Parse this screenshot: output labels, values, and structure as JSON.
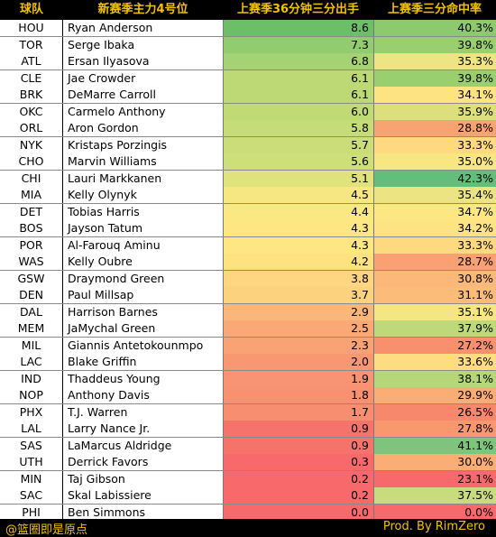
{
  "chart_data": {
    "type": "table",
    "headers": [
      "球队",
      "新赛季主力4号位",
      "上赛季36分钟三分出手",
      "上赛季三分命中率"
    ],
    "rows": [
      {
        "team": "HOU",
        "player": "Ryan Anderson",
        "fga": "8.6",
        "pct": "40.3%",
        "fga_color": "#6dbf67",
        "pct_color": "#8dca6d"
      },
      {
        "team": "TOR",
        "player": "Serge Ibaka",
        "fga": "7.3",
        "pct": "39.8%",
        "fga_color": "#93cc6f",
        "pct_color": "#9acf70"
      },
      {
        "team": "ATL",
        "player": "Ersan Ilyasova",
        "fga": "6.8",
        "pct": "35.3%",
        "fga_color": "#a5d272",
        "pct_color": "#efe484"
      },
      {
        "team": "CLE",
        "player": "Jae Crowder",
        "fga": "6.1",
        "pct": "39.8%",
        "fga_color": "#bcd975",
        "pct_color": "#9acf70"
      },
      {
        "team": "BRK",
        "player": "DeMarre Carroll",
        "fga": "6.1",
        "pct": "34.1%",
        "fga_color": "#bcd975",
        "pct_color": "#fee382"
      },
      {
        "team": "OKC",
        "player": "Carmelo Anthony",
        "fga": "6.0",
        "pct": "35.9%",
        "fga_color": "#c0da76",
        "pct_color": "#dddf7f"
      },
      {
        "team": "ORL",
        "player": "Aron Gordon",
        "fga": "5.8",
        "pct": "28.8%",
        "fga_color": "#c6dc77",
        "pct_color": "#f9a272"
      },
      {
        "team": "NYK",
        "player": "Kristaps Porzingis",
        "fga": "5.7",
        "pct": "33.3%",
        "fga_color": "#cadd78",
        "pct_color": "#fed980"
      },
      {
        "team": "CHO",
        "player": "Marvin Williams",
        "fga": "5.6",
        "pct": "35.0%",
        "fga_color": "#cede79",
        "pct_color": "#f8e683"
      },
      {
        "team": "CHI",
        "player": "Lauri Markkanen",
        "fga": "5.1",
        "pct": "42.3%",
        "fga_color": "#e0e27e",
        "pct_color": "#63be7b"
      },
      {
        "team": "MIA",
        "player": "Kelly Olynyk",
        "fga": "4.5",
        "pct": "35.4%",
        "fga_color": "#f6e783",
        "pct_color": "#ece383"
      },
      {
        "team": "DET",
        "player": "Tobias Harris",
        "fga": "4.4",
        "pct": "34.7%",
        "fga_color": "#fae883",
        "pct_color": "#fde782"
      },
      {
        "team": "BOS",
        "player": "Jayson Tatum",
        "fga": "4.3",
        "pct": "34.2%",
        "fga_color": "#fee683",
        "pct_color": "#fee382"
      },
      {
        "team": "POR",
        "player": "Al-Farouq Aminu",
        "fga": "4.3",
        "pct": "33.3%",
        "fga_color": "#fee683",
        "pct_color": "#fed980"
      },
      {
        "team": "WAS",
        "player": "Kelly Oubre",
        "fga": "4.2",
        "pct": "28.7%",
        "fga_color": "#fee282",
        "pct_color": "#f9a172"
      },
      {
        "team": "GSW",
        "player": "Draymond Green",
        "fga": "3.8",
        "pct": "30.8%",
        "fga_color": "#fed580",
        "pct_color": "#fbb878"
      },
      {
        "team": "DEN",
        "player": "Paul Millsap",
        "fga": "3.7",
        "pct": "31.1%",
        "fga_color": "#fdd27f",
        "pct_color": "#fcbc79"
      },
      {
        "team": "DAL",
        "player": "Harrison Barnes",
        "fga": "2.9",
        "pct": "35.1%",
        "fga_color": "#fbb679",
        "pct_color": "#f5e583"
      },
      {
        "team": "MEM",
        "player": "JaMychal Green",
        "fga": "2.5",
        "pct": "37.9%",
        "fga_color": "#faa976",
        "pct_color": "#bdd97a"
      },
      {
        "team": "MIL",
        "player": "Giannis Antetokounmpo",
        "fga": "2.3",
        "pct": "27.2%",
        "fga_color": "#f9a274",
        "pct_color": "#f8906d"
      },
      {
        "team": "LAC",
        "player": "Blake Griffin",
        "fga": "2.0",
        "pct": "33.6%",
        "fga_color": "#f89873",
        "pct_color": "#fedc81"
      },
      {
        "team": "IND",
        "player": "Thaddeus Young",
        "fga": "1.9",
        "pct": "38.1%",
        "fga_color": "#f89472",
        "pct_color": "#b6d779"
      },
      {
        "team": "NOP",
        "player": "Anthony Davis",
        "fga": "1.8",
        "pct": "29.9%",
        "fga_color": "#f89171",
        "pct_color": "#faad75"
      },
      {
        "team": "PHX",
        "player": "T.J. Warren",
        "fga": "1.7",
        "pct": "26.5%",
        "fga_color": "#f88e70",
        "pct_color": "#f8886b"
      },
      {
        "team": "LAL",
        "player": "Larry Nance Jr.",
        "fga": "0.9",
        "pct": "27.8%",
        "fga_color": "#f6736b",
        "pct_color": "#f9976f"
      },
      {
        "team": "SAS",
        "player": "LaMarcus Aldridge",
        "fga": "0.9",
        "pct": "41.1%",
        "fga_color": "#f6736b",
        "pct_color": "#7fc47c"
      },
      {
        "team": "UTH",
        "player": "Derrick Favors",
        "fga": "0.3",
        "pct": "30.0%",
        "fga_color": "#f8696b",
        "pct_color": "#faae76"
      },
      {
        "team": "MIN",
        "player": "Taj Gibson",
        "fga": "0.2",
        "pct": "23.1%",
        "fga_color": "#f8696b",
        "pct_color": "#f8696b"
      },
      {
        "team": "SAC",
        "player": "Skal Labissiere",
        "fga": "0.2",
        "pct": "37.5%",
        "fga_color": "#f8696b",
        "pct_color": "#c9dc7d"
      },
      {
        "team": "PHI",
        "player": "Ben Simmons",
        "fga": "0.0",
        "pct": "0.0%",
        "fga_color": "#f8696b",
        "pct_color": "#f8696b"
      }
    ]
  },
  "footer": {
    "left": "@篮圈即是原点",
    "right": "Prod. By RimZero"
  },
  "colors": {
    "header_text": "#f2c200",
    "background": "#000000"
  }
}
